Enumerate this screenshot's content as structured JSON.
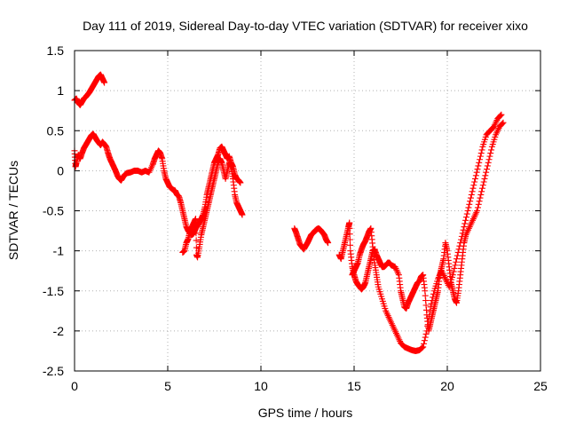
{
  "chart_data": {
    "type": "scatter",
    "title": "Day 111 of 2019, Sidereal Day-to-day VTEC variation (SDTVAR) for receiver xixo",
    "xlabel": "GPS time / hours",
    "ylabel": "SDTVAR / TECUs",
    "xlim": [
      0,
      25
    ],
    "ylim": [
      -2.5,
      1.5
    ],
    "xticks": [
      0,
      5,
      10,
      15,
      20,
      25
    ],
    "yticks": [
      -2.5,
      -2,
      -1.5,
      -1,
      -0.5,
      0,
      0.5,
      1,
      1.5
    ],
    "xtick_labels": [
      "0",
      "5",
      "10",
      "15",
      "20",
      "25"
    ],
    "ytick_labels": [
      "-2.5",
      "-2",
      "-1.5",
      "-1",
      "-0.5",
      "0",
      "0.5",
      "1",
      "1.5"
    ],
    "grid": true,
    "marker": "+",
    "series": [
      {
        "color": "#ff0000",
        "segments": [
          [
            [
              0.0,
              0.88
            ],
            [
              0.1,
              0.9
            ],
            [
              0.2,
              0.85
            ],
            [
              0.3,
              0.82
            ],
            [
              0.4,
              0.86
            ],
            [
              0.5,
              0.9
            ],
            [
              0.6,
              0.92
            ],
            [
              0.7,
              0.95
            ],
            [
              0.8,
              0.98
            ],
            [
              0.9,
              1.02
            ],
            [
              1.0,
              1.06
            ],
            [
              1.1,
              1.1
            ],
            [
              1.2,
              1.14
            ],
            [
              1.3,
              1.18
            ],
            [
              1.4,
              1.2
            ],
            [
              1.5,
              1.15
            ],
            [
              1.6,
              1.1
            ]
          ],
          [
            [
              0.0,
              0.25
            ],
            [
              0.05,
              0.05
            ],
            [
              0.1,
              0.1
            ],
            [
              0.2,
              0.2
            ],
            [
              0.3,
              0.15
            ],
            [
              0.4,
              0.22
            ],
            [
              0.5,
              0.28
            ],
            [
              0.6,
              0.32
            ],
            [
              0.7,
              0.36
            ],
            [
              0.8,
              0.4
            ],
            [
              0.9,
              0.44
            ],
            [
              1.0,
              0.46
            ],
            [
              1.1,
              0.42
            ],
            [
              1.2,
              0.38
            ],
            [
              1.3,
              0.35
            ],
            [
              1.4,
              0.32
            ],
            [
              1.5,
              0.36
            ],
            [
              1.6,
              0.33
            ],
            [
              1.7,
              0.3
            ],
            [
              1.8,
              0.22
            ],
            [
              1.9,
              0.15
            ],
            [
              2.0,
              0.1
            ],
            [
              2.1,
              0.05
            ],
            [
              2.2,
              0.0
            ],
            [
              2.3,
              -0.06
            ],
            [
              2.4,
              -0.1
            ],
            [
              2.5,
              -0.12
            ],
            [
              2.6,
              -0.08
            ],
            [
              2.7,
              -0.05
            ],
            [
              2.8,
              -0.03
            ],
            [
              3.0,
              -0.02
            ],
            [
              3.2,
              0.0
            ],
            [
              3.4,
              0.0
            ],
            [
              3.6,
              -0.02
            ],
            [
              3.8,
              0.0
            ],
            [
              4.0,
              -0.02
            ],
            [
              4.2,
              0.08
            ],
            [
              4.3,
              0.15
            ],
            [
              4.4,
              0.2
            ],
            [
              4.5,
              0.25
            ],
            [
              4.6,
              0.22
            ],
            [
              4.7,
              0.15
            ],
            [
              4.8,
              0.0
            ],
            [
              4.9,
              -0.1
            ],
            [
              5.0,
              -0.15
            ],
            [
              5.1,
              -0.2
            ],
            [
              5.2,
              -0.22
            ],
            [
              5.3,
              -0.24
            ],
            [
              5.4,
              -0.25
            ],
            [
              5.5,
              -0.3
            ],
            [
              5.6,
              -0.32
            ],
            [
              5.7,
              -0.4
            ],
            [
              5.8,
              -0.5
            ],
            [
              5.9,
              -0.6
            ],
            [
              6.0,
              -0.7
            ],
            [
              6.1,
              -0.75
            ],
            [
              6.2,
              -0.78
            ],
            [
              6.3,
              -0.8
            ],
            [
              6.4,
              -0.78
            ],
            [
              6.5,
              -0.72
            ],
            [
              6.6,
              -0.68
            ],
            [
              6.7,
              -0.65
            ],
            [
              6.8,
              -0.6
            ],
            [
              6.9,
              -0.55
            ],
            [
              7.0,
              -0.45
            ],
            [
              7.1,
              -0.3
            ],
            [
              7.2,
              -0.2
            ],
            [
              7.3,
              -0.1
            ],
            [
              7.4,
              0.0
            ],
            [
              7.5,
              0.1
            ],
            [
              7.6,
              0.15
            ],
            [
              7.7,
              0.2
            ],
            [
              7.8,
              0.28
            ],
            [
              7.9,
              0.3
            ],
            [
              8.0,
              0.25
            ],
            [
              8.1,
              0.2
            ],
            [
              8.2,
              0.15
            ],
            [
              8.3,
              0.18
            ],
            [
              8.4,
              0.1
            ],
            [
              8.5,
              0.05
            ],
            [
              8.6,
              -0.05
            ],
            [
              8.7,
              -0.1
            ],
            [
              8.8,
              -0.12
            ],
            [
              8.9,
              -0.15
            ]
          ],
          [
            [
              5.8,
              -1.02
            ],
            [
              5.9,
              -1.0
            ],
            [
              6.0,
              -0.9
            ],
            [
              6.1,
              -0.85
            ],
            [
              6.2,
              -0.75
            ],
            [
              6.3,
              -0.7
            ],
            [
              6.4,
              -0.65
            ],
            [
              6.5,
              -0.6
            ],
            [
              6.55,
              -1.05
            ],
            [
              6.6,
              -1.08
            ],
            [
              6.7,
              -0.95
            ],
            [
              6.8,
              -0.8
            ],
            [
              6.9,
              -0.7
            ],
            [
              7.0,
              -0.6
            ],
            [
              7.1,
              -0.5
            ],
            [
              7.2,
              -0.4
            ],
            [
              7.3,
              -0.3
            ],
            [
              7.4,
              -0.2
            ],
            [
              7.5,
              -0.1
            ],
            [
              7.6,
              0.0
            ],
            [
              7.7,
              0.1
            ],
            [
              7.8,
              0.15
            ],
            [
              7.9,
              0.1
            ],
            [
              8.0,
              0.0
            ],
            [
              8.1,
              -0.1
            ],
            [
              8.2,
              0.0
            ],
            [
              8.3,
              0.1
            ],
            [
              8.4,
              0.05
            ],
            [
              8.5,
              -0.1
            ],
            [
              8.6,
              -0.3
            ],
            [
              8.7,
              -0.4
            ],
            [
              8.8,
              -0.45
            ],
            [
              8.9,
              -0.5
            ],
            [
              9.0,
              -0.55
            ]
          ],
          [
            [
              11.8,
              -0.72
            ],
            [
              11.9,
              -0.78
            ],
            [
              12.0,
              -0.85
            ],
            [
              12.1,
              -0.92
            ],
            [
              12.2,
              -0.95
            ],
            [
              12.3,
              -0.98
            ],
            [
              12.4,
              -0.94
            ],
            [
              12.5,
              -0.9
            ],
            [
              12.6,
              -0.85
            ],
            [
              12.7,
              -0.8
            ],
            [
              12.8,
              -0.78
            ],
            [
              12.9,
              -0.75
            ],
            [
              13.0,
              -0.73
            ],
            [
              13.1,
              -0.72
            ],
            [
              13.2,
              -0.74
            ],
            [
              13.3,
              -0.77
            ],
            [
              13.4,
              -0.8
            ],
            [
              13.5,
              -0.86
            ],
            [
              13.6,
              -0.9
            ]
          ],
          [
            [
              14.2,
              -1.05
            ],
            [
              14.3,
              -1.1
            ],
            [
              14.4,
              -1.0
            ],
            [
              14.5,
              -0.9
            ],
            [
              14.6,
              -0.8
            ],
            [
              14.7,
              -0.7
            ],
            [
              14.75,
              -0.65
            ],
            [
              14.8,
              -1.0
            ],
            [
              14.9,
              -1.2
            ],
            [
              15.0,
              -1.3
            ],
            [
              15.1,
              -1.38
            ],
            [
              15.2,
              -1.42
            ],
            [
              15.3,
              -1.45
            ],
            [
              15.4,
              -1.48
            ],
            [
              15.5,
              -1.45
            ],
            [
              15.6,
              -1.4
            ],
            [
              15.7,
              -1.3
            ],
            [
              15.8,
              -1.2
            ],
            [
              15.9,
              -1.1
            ],
            [
              16.0,
              -1.0
            ],
            [
              16.1,
              -0.98
            ],
            [
              16.2,
              -1.05
            ],
            [
              16.3,
              -1.1
            ],
            [
              16.4,
              -1.15
            ],
            [
              16.5,
              -1.2
            ],
            [
              16.6,
              -1.2
            ],
            [
              16.7,
              -1.18
            ],
            [
              16.8,
              -1.15
            ],
            [
              16.9,
              -1.15
            ],
            [
              17.0,
              -1.18
            ],
            [
              17.2,
              -1.2
            ],
            [
              17.4,
              -1.3
            ],
            [
              17.5,
              -1.5
            ],
            [
              17.6,
              -1.6
            ],
            [
              17.7,
              -1.7
            ],
            [
              17.8,
              -1.72
            ],
            [
              17.9,
              -1.65
            ],
            [
              18.0,
              -1.6
            ],
            [
              18.1,
              -1.55
            ],
            [
              18.2,
              -1.5
            ],
            [
              18.3,
              -1.45
            ],
            [
              18.4,
              -1.4
            ],
            [
              18.5,
              -1.38
            ],
            [
              18.6,
              -1.32
            ],
            [
              18.7,
              -1.3
            ],
            [
              18.8,
              -1.5
            ],
            [
              18.9,
              -1.8
            ],
            [
              19.0,
              -2.0
            ],
            [
              19.1,
              -1.9
            ],
            [
              19.2,
              -1.8
            ],
            [
              19.3,
              -1.7
            ],
            [
              19.4,
              -1.6
            ],
            [
              19.5,
              -1.5
            ],
            [
              19.6,
              -1.3
            ],
            [
              19.7,
              -1.2
            ],
            [
              19.8,
              -1.1
            ],
            [
              19.9,
              -0.9
            ],
            [
              20.0,
              -1.0
            ],
            [
              20.1,
              -1.2
            ],
            [
              20.2,
              -1.4
            ],
            [
              20.3,
              -1.5
            ],
            [
              20.4,
              -1.6
            ],
            [
              20.5,
              -1.65
            ],
            [
              20.6,
              -1.5
            ],
            [
              20.7,
              -1.3
            ],
            [
              20.8,
              -1.1
            ],
            [
              20.9,
              -0.9
            ],
            [
              21.0,
              -0.8
            ],
            [
              21.2,
              -0.7
            ],
            [
              21.4,
              -0.6
            ],
            [
              21.6,
              -0.5
            ],
            [
              21.8,
              -0.3
            ],
            [
              22.0,
              -0.1
            ],
            [
              22.2,
              0.1
            ],
            [
              22.4,
              0.3
            ],
            [
              22.6,
              0.45
            ],
            [
              22.8,
              0.55
            ],
            [
              23.0,
              0.6
            ]
          ],
          [
            [
              14.9,
              -1.3
            ],
            [
              15.0,
              -1.25
            ],
            [
              15.1,
              -1.2
            ],
            [
              15.2,
              -1.15
            ],
            [
              15.3,
              -1.05
            ],
            [
              15.4,
              -0.98
            ],
            [
              15.5,
              -0.92
            ],
            [
              15.6,
              -0.88
            ],
            [
              15.7,
              -0.82
            ],
            [
              15.8,
              -0.76
            ],
            [
              15.9,
              -0.72
            ],
            [
              16.0,
              -0.95
            ],
            [
              16.1,
              -1.15
            ],
            [
              16.2,
              -1.3
            ],
            [
              16.3,
              -1.45
            ],
            [
              16.5,
              -1.6
            ],
            [
              16.7,
              -1.75
            ],
            [
              16.9,
              -1.85
            ],
            [
              17.1,
              -1.95
            ],
            [
              17.3,
              -2.05
            ],
            [
              17.5,
              -2.15
            ],
            [
              17.7,
              -2.2
            ],
            [
              17.9,
              -2.22
            ],
            [
              18.1,
              -2.24
            ],
            [
              18.3,
              -2.25
            ],
            [
              18.5,
              -2.24
            ],
            [
              18.7,
              -2.2
            ],
            [
              18.9,
              -2.0
            ],
            [
              19.1,
              -1.7
            ],
            [
              19.3,
              -1.5
            ],
            [
              19.5,
              -1.35
            ],
            [
              19.7,
              -1.25
            ],
            [
              19.9,
              -1.35
            ],
            [
              20.1,
              -1.45
            ],
            [
              20.3,
              -1.3
            ],
            [
              20.5,
              -1.1
            ],
            [
              20.7,
              -0.9
            ],
            [
              20.9,
              -0.7
            ],
            [
              21.1,
              -0.5
            ],
            [
              21.3,
              -0.3
            ],
            [
              21.5,
              -0.1
            ],
            [
              21.7,
              0.1
            ],
            [
              21.9,
              0.3
            ],
            [
              22.1,
              0.45
            ],
            [
              22.3,
              0.5
            ],
            [
              22.5,
              0.55
            ],
            [
              22.7,
              0.65
            ],
            [
              22.9,
              0.7
            ]
          ]
        ]
      }
    ]
  }
}
